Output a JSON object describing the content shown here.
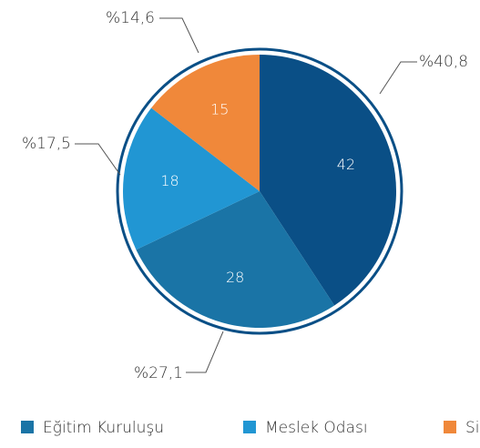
{
  "chart_data": {
    "type": "pie",
    "values": [
      42,
      28,
      18,
      15
    ],
    "colors": [
      "#0a4f86",
      "#1a74a6",
      "#2196d3",
      "#f0883a"
    ],
    "percents": [
      40.8,
      27.1,
      17.5,
      14.6
    ],
    "percent_labels": [
      "%40,8",
      "%27,1",
      "%17,5",
      "%14,6"
    ],
    "legend": [
      {
        "name": "Eğitim Kuruluşu",
        "color": "#1a74a6"
      },
      {
        "name": "Meslek Odası",
        "color": "#2196d3"
      },
      {
        "name": "Si",
        "color": "#f0883a"
      }
    ]
  }
}
